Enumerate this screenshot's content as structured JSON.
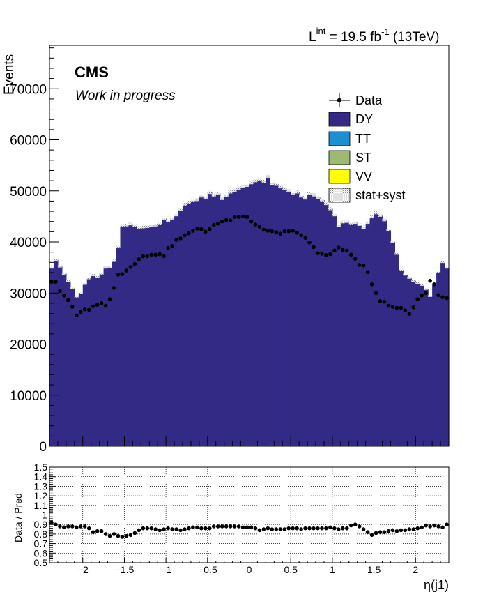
{
  "header": {
    "lumi_L": "L",
    "lumi_sup": "int",
    "lumi_value": " = 19.5 fb",
    "lumi_exp": "-1",
    "lumi_energy": " (13TeV)"
  },
  "labels": {
    "cms": "CMS",
    "work_in_progress": "Work in progress"
  },
  "legend": [
    {
      "key": "data",
      "label": "Data",
      "color": "#000000"
    },
    {
      "key": "dy",
      "label": "DY",
      "color": "#332a86"
    },
    {
      "key": "tt",
      "label": "TT",
      "color": "#1b8fd0"
    },
    {
      "key": "st",
      "label": "ST",
      "color": "#9bbb72"
    },
    {
      "key": "vv",
      "label": "VV",
      "color": "#ffff00"
    },
    {
      "key": "stat",
      "label": "stat+syst",
      "color": "#cccccc"
    }
  ],
  "chart_data": [
    {
      "type": "bar",
      "subtype": "stacked-histogram-with-data-points",
      "title": "",
      "xlabel": "",
      "ylabel": "Events",
      "xlim": [
        -2.4,
        2.4
      ],
      "ylim": [
        0,
        78500
      ],
      "yticks": [
        0,
        10000,
        20000,
        30000,
        40000,
        50000,
        60000,
        70000
      ],
      "ytick_labels": [
        "0",
        "10000",
        "20000",
        "30000",
        "40000",
        "50000",
        "60000",
        "70000"
      ],
      "bin_width": 0.05,
      "bin_lo": -2.4,
      "series": [
        {
          "name": "DY",
          "color": "#332a86",
          "values": [
            35000,
            36500,
            35200,
            33800,
            32300,
            31000,
            29300,
            30000,
            31800,
            32900,
            33500,
            33200,
            33800,
            35000,
            35100,
            36300,
            39000,
            43200,
            43300,
            43500,
            43200,
            42800,
            42900,
            43000,
            43200,
            43300,
            43600,
            44600,
            44100,
            44600,
            45300,
            46300,
            47400,
            47800,
            48100,
            48300,
            49000,
            48700,
            49700,
            49200,
            49500,
            48500,
            49100,
            49800,
            50100,
            50500,
            50900,
            51100,
            51600,
            52000,
            52200,
            51900,
            52800,
            51500,
            51300,
            50800,
            50400,
            50100,
            49500,
            49800,
            49000,
            48600,
            49500,
            49200,
            48700,
            48200,
            47500,
            46500,
            45300,
            43200,
            43900,
            44000,
            43700,
            43800,
            43400,
            42800,
            43800,
            44900,
            45700,
            45200,
            44300,
            42300,
            40000,
            37700,
            34500,
            33600,
            33000,
            32400,
            32000,
            31600,
            30800,
            29400,
            31700,
            34100,
            36100,
            35000
          ]
        },
        {
          "name": "TT",
          "color": "#1b8fd0",
          "values": [
            0,
            0,
            0,
            0,
            0,
            0,
            0,
            0,
            0,
            0,
            0,
            0,
            0,
            0,
            0,
            0,
            0,
            0,
            0,
            0,
            0,
            0,
            0,
            0,
            0,
            0,
            0,
            0,
            0,
            0,
            0,
            0,
            0,
            0,
            0,
            0,
            0,
            0,
            0,
            0,
            0,
            0,
            0,
            0,
            0,
            0,
            0,
            0,
            0,
            0,
            0,
            0,
            0,
            0,
            0,
            0,
            0,
            0,
            0,
            0,
            0,
            0,
            0,
            0,
            0,
            0,
            0,
            0,
            0,
            0,
            0,
            0,
            0,
            0,
            0,
            0,
            0,
            0,
            0,
            0,
            0,
            0,
            0,
            0,
            0,
            0,
            0,
            0,
            0,
            0,
            0,
            0,
            0,
            0,
            0,
            0
          ]
        },
        {
          "name": "ST",
          "color": "#9bbb72",
          "values": [
            0,
            0,
            0,
            0,
            0,
            0,
            0,
            0,
            0,
            0,
            0,
            0,
            0,
            0,
            0,
            0,
            0,
            0,
            0,
            0,
            0,
            0,
            0,
            0,
            0,
            0,
            0,
            0,
            0,
            0,
            0,
            0,
            0,
            0,
            0,
            0,
            0,
            0,
            0,
            0,
            0,
            0,
            0,
            0,
            0,
            0,
            0,
            0,
            0,
            0,
            0,
            0,
            0,
            0,
            0,
            0,
            0,
            0,
            0,
            0,
            0,
            0,
            0,
            0,
            0,
            0,
            0,
            0,
            0,
            0,
            0,
            0,
            0,
            0,
            0,
            0,
            0,
            0,
            0,
            0,
            0,
            0,
            0,
            0,
            0,
            0,
            0,
            0,
            0,
            0,
            0,
            0,
            0,
            0,
            0,
            0
          ]
        },
        {
          "name": "VV",
          "color": "#ffff00",
          "values": [
            0,
            0,
            0,
            0,
            0,
            0,
            0,
            0,
            0,
            0,
            0,
            0,
            0,
            0,
            0,
            0,
            0,
            0,
            0,
            0,
            0,
            0,
            0,
            0,
            0,
            0,
            0,
            0,
            0,
            0,
            0,
            0,
            0,
            0,
            0,
            0,
            0,
            0,
            0,
            0,
            0,
            0,
            0,
            0,
            0,
            0,
            0,
            0,
            0,
            0,
            0,
            0,
            0,
            0,
            0,
            0,
            0,
            0,
            0,
            0,
            0,
            0,
            0,
            0,
            0,
            0,
            0,
            0,
            0,
            0,
            0,
            0,
            0,
            0,
            0,
            0,
            0,
            0,
            0,
            0,
            0,
            0,
            0,
            0,
            0,
            0,
            0,
            0,
            0,
            0,
            0,
            0,
            0,
            0,
            0,
            0
          ]
        },
        {
          "name": "Data",
          "color": "#000000",
          "values": [
            32200,
            32200,
            30400,
            29500,
            28600,
            27300,
            25600,
            26300,
            26800,
            26700,
            27400,
            27700,
            28000,
            27500,
            28800,
            31000,
            33600,
            33700,
            34400,
            35100,
            35700,
            36600,
            37200,
            37200,
            37500,
            37500,
            37600,
            37200,
            38800,
            39200,
            40400,
            40700,
            41300,
            41700,
            42200,
            42600,
            42500,
            42000,
            42500,
            43300,
            43600,
            44000,
            44300,
            44200,
            44900,
            44900,
            45000,
            44900,
            44000,
            43400,
            43000,
            42400,
            42200,
            42100,
            41900,
            41600,
            42100,
            42100,
            42200,
            41800,
            41300,
            40800,
            39900,
            39000,
            37800,
            37700,
            37400,
            37600,
            38300,
            38900,
            38400,
            38300,
            37500,
            36700,
            35500,
            35400,
            34100,
            31700,
            30000,
            28400,
            28300,
            27500,
            27300,
            27100,
            27100,
            26600,
            25900,
            27200,
            28800,
            29500,
            30000,
            32400,
            31700,
            29600,
            29200,
            29000
          ]
        }
      ]
    },
    {
      "type": "scatter",
      "title": "",
      "xlabel": "η(j1)",
      "ylabel": "Data / Pred",
      "xlim": [
        -2.4,
        2.4
      ],
      "ylim": [
        0.5,
        1.5
      ],
      "xticks": [
        -2,
        -1.5,
        -1,
        -0.5,
        0,
        0.5,
        1,
        1.5,
        2
      ],
      "xtick_labels": [
        "−2",
        "−1.5",
        "−1",
        "−0.5",
        "0",
        "0.5",
        "1",
        "1.5",
        "2"
      ],
      "yticks": [
        0.5,
        0.6,
        0.7,
        0.8,
        0.9,
        1.0,
        1.1,
        1.2,
        1.3,
        1.4,
        1.5
      ],
      "ytick_labels": [
        "0.5",
        "0.6",
        "0.7",
        "0.8",
        "0.9",
        "1",
        "1.1",
        "1.2",
        "1.3",
        "1.4",
        "1.5"
      ],
      "grid": true,
      "series": [
        {
          "name": "Data / Pred",
          "values": [
            0.92,
            0.9,
            0.88,
            0.87,
            0.88,
            0.88,
            0.87,
            0.88,
            0.88,
            0.86,
            0.82,
            0.83,
            0.83,
            0.8,
            0.78,
            0.8,
            0.78,
            0.77,
            0.78,
            0.79,
            0.81,
            0.84,
            0.86,
            0.86,
            0.86,
            0.85,
            0.84,
            0.85,
            0.86,
            0.85,
            0.85,
            0.84,
            0.85,
            0.86,
            0.87,
            0.87,
            0.86,
            0.86,
            0.86,
            0.88,
            0.88,
            0.88,
            0.88,
            0.88,
            0.88,
            0.88,
            0.87,
            0.87,
            0.87,
            0.86,
            0.84,
            0.85,
            0.86,
            0.85,
            0.85,
            0.85,
            0.85,
            0.86,
            0.86,
            0.86,
            0.85,
            0.86,
            0.86,
            0.86,
            0.86,
            0.86,
            0.86,
            0.87,
            0.86,
            0.85,
            0.86,
            0.86,
            0.89,
            0.9,
            0.88,
            0.85,
            0.82,
            0.79,
            0.81,
            0.82,
            0.82,
            0.83,
            0.84,
            0.83,
            0.84,
            0.84,
            0.85,
            0.85,
            0.86,
            0.87,
            0.89,
            0.88,
            0.89,
            0.88,
            0.87,
            0.9
          ]
        }
      ]
    }
  ]
}
